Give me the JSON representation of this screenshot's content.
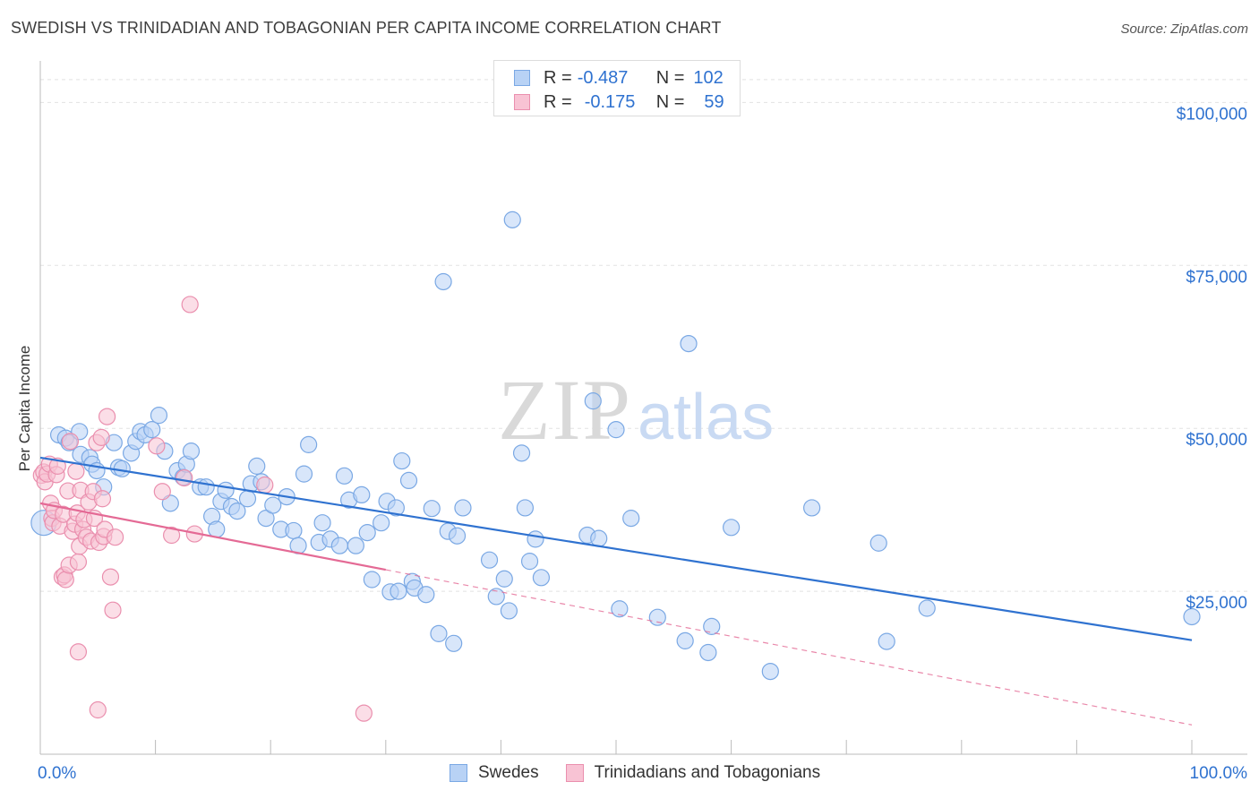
{
  "title": "SWEDISH VS TRINIDADIAN AND TOBAGONIAN PER CAPITA INCOME CORRELATION CHART",
  "source": "Source: ZipAtlas.com",
  "watermark": {
    "zip": "ZIP",
    "atlas": "atlas"
  },
  "legend": {
    "rows": [
      {
        "r_label": "R =",
        "r_value": "-0.487",
        "n_label": "N =",
        "n_value": "102"
      },
      {
        "r_label": "R =",
        "r_value": "-0.175",
        "n_label": "N =",
        "n_value": "59"
      }
    ]
  },
  "bottom_legend": {
    "series1": "Swedes",
    "series2": "Trinidadians and Tobagonians"
  },
  "colors": {
    "blue_fill": "#b8d2f5",
    "blue_stroke": "#7aa8e4",
    "blue_line": "#2f72d0",
    "pink_fill": "#f8c3d4",
    "pink_stroke": "#ea8fae",
    "pink_line": "#e46a95",
    "grid": "#e2e2e2",
    "tick_text": "#2f72d0"
  },
  "chart_data": {
    "type": "scatter",
    "title": "SWEDISH VS TRINIDADIAN AND TOBAGONIAN PER CAPITA INCOME CORRELATION CHART",
    "xlabel": "",
    "ylabel": "Per Capita Income",
    "xlim": [
      0,
      100
    ],
    "ylim": [
      0,
      105000
    ],
    "x_tick_labels": [
      "0.0%",
      "100.0%"
    ],
    "y_ticks": [
      25000,
      50000,
      75000,
      100000
    ],
    "y_tick_labels": [
      "$25,000",
      "$50,000",
      "$75,000",
      "$100,000"
    ],
    "series": [
      {
        "name": "Swedes",
        "R": -0.487,
        "N": 102,
        "trend": {
          "x": [
            0,
            100
          ],
          "y": [
            45500,
            17500
          ],
          "dashed_from": null
        },
        "points": [
          [
            0.3,
            35500
          ],
          [
            1.6,
            49000
          ],
          [
            2.2,
            48500
          ],
          [
            2.5,
            47800
          ],
          [
            3.4,
            49500
          ],
          [
            3.5,
            46000
          ],
          [
            4.3,
            45500
          ],
          [
            4.5,
            44500
          ],
          [
            4.9,
            43500
          ],
          [
            5.5,
            41000
          ],
          [
            6.4,
            47800
          ],
          [
            6.8,
            44000
          ],
          [
            7.1,
            43800
          ],
          [
            7.9,
            46200
          ],
          [
            8.3,
            48000
          ],
          [
            8.7,
            49500
          ],
          [
            9.1,
            49000
          ],
          [
            9.7,
            49800
          ],
          [
            10.3,
            52000
          ],
          [
            10.8,
            46500
          ],
          [
            11.3,
            38500
          ],
          [
            11.9,
            43500
          ],
          [
            12.4,
            42500
          ],
          [
            12.7,
            44500
          ],
          [
            13.1,
            46500
          ],
          [
            13.9,
            41000
          ],
          [
            14.4,
            41000
          ],
          [
            14.9,
            36500
          ],
          [
            15.3,
            34500
          ],
          [
            15.7,
            38800
          ],
          [
            16.1,
            40500
          ],
          [
            16.6,
            38000
          ],
          [
            17.1,
            37300
          ],
          [
            18.0,
            39200
          ],
          [
            18.3,
            41500
          ],
          [
            18.8,
            44200
          ],
          [
            19.2,
            41800
          ],
          [
            19.6,
            36200
          ],
          [
            20.2,
            38200
          ],
          [
            20.9,
            34500
          ],
          [
            21.4,
            39500
          ],
          [
            22.0,
            34300
          ],
          [
            22.4,
            32000
          ],
          [
            22.9,
            43000
          ],
          [
            23.3,
            47500
          ],
          [
            24.2,
            32500
          ],
          [
            24.5,
            35500
          ],
          [
            25.2,
            33000
          ],
          [
            26.0,
            32000
          ],
          [
            26.4,
            42700
          ],
          [
            26.8,
            39000
          ],
          [
            27.4,
            32000
          ],
          [
            27.9,
            39800
          ],
          [
            28.4,
            34000
          ],
          [
            28.8,
            26800
          ],
          [
            29.6,
            35500
          ],
          [
            30.1,
            38800
          ],
          [
            30.4,
            24900
          ],
          [
            30.9,
            37800
          ],
          [
            31.1,
            25000
          ],
          [
            31.4,
            45000
          ],
          [
            32.0,
            42000
          ],
          [
            32.3,
            26500
          ],
          [
            32.5,
            25500
          ],
          [
            33.5,
            24500
          ],
          [
            34.0,
            37700
          ],
          [
            34.6,
            18500
          ],
          [
            35.0,
            72500
          ],
          [
            35.4,
            34200
          ],
          [
            35.9,
            17000
          ],
          [
            36.2,
            33500
          ],
          [
            36.7,
            37800
          ],
          [
            39.0,
            29800
          ],
          [
            39.6,
            24200
          ],
          [
            40.3,
            26900
          ],
          [
            40.7,
            22000
          ],
          [
            41.0,
            82000
          ],
          [
            41.8,
            46200
          ],
          [
            42.1,
            37800
          ],
          [
            42.5,
            29600
          ],
          [
            43.0,
            33000
          ],
          [
            43.5,
            27100
          ],
          [
            47.5,
            33600
          ],
          [
            48.0,
            54200
          ],
          [
            48.5,
            33100
          ],
          [
            50.0,
            49800
          ],
          [
            50.3,
            22300
          ],
          [
            51.3,
            36200
          ],
          [
            53.6,
            21000
          ],
          [
            56.0,
            17400
          ],
          [
            56.3,
            63000
          ],
          [
            58.0,
            15600
          ],
          [
            58.3,
            19600
          ],
          [
            60.0,
            34800
          ],
          [
            63.4,
            12700
          ],
          [
            67.0,
            37800
          ],
          [
            72.8,
            32400
          ],
          [
            73.5,
            17300
          ],
          [
            77.0,
            22400
          ],
          [
            100,
            21100
          ]
        ]
      },
      {
        "name": "Trinidadians and Tobagonians",
        "R": -0.175,
        "N": 59,
        "trend": {
          "x": [
            0,
            100
          ],
          "y": [
            38500,
            4500
          ],
          "solid_until_x": 30
        },
        "points": [
          [
            0.1,
            42800
          ],
          [
            0.3,
            43300
          ],
          [
            0.4,
            41800
          ],
          [
            0.6,
            43000
          ],
          [
            0.8,
            44500
          ],
          [
            0.9,
            38500
          ],
          [
            1.0,
            36200
          ],
          [
            1.1,
            35500
          ],
          [
            1.2,
            37400
          ],
          [
            1.4,
            42900
          ],
          [
            1.5,
            44200
          ],
          [
            1.7,
            35000
          ],
          [
            1.9,
            27200
          ],
          [
            2.0,
            36800
          ],
          [
            2.1,
            27500
          ],
          [
            2.2,
            26800
          ],
          [
            2.4,
            40400
          ],
          [
            2.5,
            29000
          ],
          [
            2.6,
            48000
          ],
          [
            2.8,
            34200
          ],
          [
            3.0,
            35300
          ],
          [
            3.1,
            43400
          ],
          [
            3.2,
            37000
          ],
          [
            3.3,
            29500
          ],
          [
            3.3,
            15700
          ],
          [
            3.4,
            31900
          ],
          [
            3.5,
            40500
          ],
          [
            3.7,
            34500
          ],
          [
            3.8,
            36000
          ],
          [
            4.0,
            33300
          ],
          [
            4.2,
            38700
          ],
          [
            4.4,
            32700
          ],
          [
            4.6,
            40300
          ],
          [
            4.7,
            36200
          ],
          [
            4.9,
            47800
          ],
          [
            5.0,
            6800
          ],
          [
            5.1,
            32500
          ],
          [
            5.3,
            48600
          ],
          [
            5.4,
            39200
          ],
          [
            5.5,
            33400
          ],
          [
            5.6,
            34500
          ],
          [
            5.8,
            51800
          ],
          [
            6.1,
            27200
          ],
          [
            6.3,
            22100
          ],
          [
            6.5,
            33300
          ],
          [
            10.1,
            47300
          ],
          [
            10.6,
            40300
          ],
          [
            11.4,
            33600
          ],
          [
            12.5,
            42400
          ],
          [
            13.0,
            69000
          ],
          [
            13.4,
            33800
          ],
          [
            19.5,
            41300
          ],
          [
            28.1,
            6300
          ]
        ]
      }
    ]
  }
}
